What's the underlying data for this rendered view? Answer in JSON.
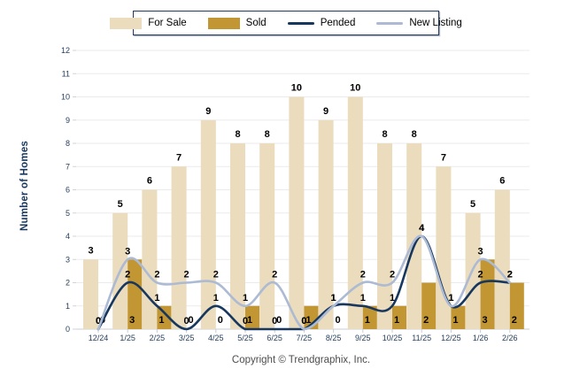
{
  "footer": {
    "copyright": "Copyright © Trendgraphix, Inc."
  },
  "chart_data": {
    "type": "combo-bar-line",
    "title": "",
    "xlabel": "",
    "ylabel": "Number of Homes",
    "ylim": [
      0,
      12
    ],
    "ytick_step": 1,
    "grid": true,
    "legend_position": "top",
    "categories": [
      "12/24",
      "1/25",
      "2/25",
      "3/25",
      "4/25",
      "5/25",
      "6/25",
      "7/25",
      "8/25",
      "9/25",
      "10/25",
      "11/25",
      "12/25",
      "1/26",
      "2/26"
    ],
    "series": [
      {
        "name": "For Sale",
        "type": "bar",
        "color": "#EADCBD",
        "values": [
          3,
          5,
          6,
          7,
          9,
          8,
          8,
          10,
          9,
          10,
          8,
          8,
          7,
          5,
          6
        ]
      },
      {
        "name": "Sold",
        "type": "bar",
        "color": "#C29733",
        "values": [
          0,
          3,
          1,
          0,
          0,
          1,
          0,
          1,
          0,
          1,
          1,
          2,
          1,
          3,
          2
        ]
      },
      {
        "name": "Pended",
        "type": "line",
        "color": "#17375E",
        "values": [
          0,
          2,
          1,
          0,
          1,
          0,
          0,
          0,
          1,
          1,
          1,
          4,
          1,
          2,
          2
        ]
      },
      {
        "name": "New Listing",
        "type": "line",
        "color": "#ACBAD3",
        "values": [
          0,
          3,
          2,
          2,
          2,
          1,
          2,
          0,
          1,
          2,
          2,
          4,
          1,
          3,
          2
        ]
      }
    ]
  }
}
